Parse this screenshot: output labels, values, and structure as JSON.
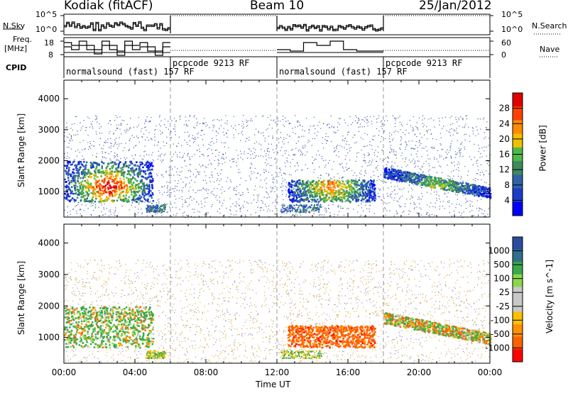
{
  "header": {
    "radar": "Kodiak (fitACF)",
    "beam": "Beam 10",
    "date": "25/Jan/2012"
  },
  "status_labels": {
    "nsky": "N.Sky",
    "nsearch": "N.Search",
    "freq": "Freq.",
    "freq_unit": "[MHz]",
    "nave": "Nave",
    "cpid": "CPID",
    "left_ticks_top": [
      "10^5",
      "10^0"
    ],
    "right_ticks_top": [
      "10^5",
      "10^0"
    ],
    "left_ticks_freq": [
      "18",
      "8"
    ],
    "right_ticks_nave": [
      "60",
      "0"
    ]
  },
  "cpid_segments": [
    {
      "label": "normalsound (fast) 157 RF",
      "start": 0,
      "end": 6
    },
    {
      "label": "pcpcode 9213 RF",
      "start": 6,
      "end": 12
    },
    {
      "label": "normalsound (fast) 157 RF",
      "start": 12,
      "end": 18
    },
    {
      "label": "pcpcode 9213 RF",
      "start": 18,
      "end": 24
    }
  ],
  "chart_data": [
    {
      "type": "heatmap",
      "title": "",
      "xlabel": "Time UT",
      "ylabel": "Slant Range [km]",
      "x_ticks": [
        "00:00",
        "04:00",
        "08:00",
        "12:00",
        "16:00",
        "20:00",
        "00:00"
      ],
      "xlim_hours": [
        0,
        24
      ],
      "y_ticks": [
        1000,
        2000,
        3000,
        4000
      ],
      "ylim_km": [
        180,
        4600
      ],
      "colorbar": {
        "label": "Power [dB]",
        "ticks": [
          "28",
          "24",
          "20",
          "16",
          "12",
          "8",
          "4"
        ],
        "range": [
          0,
          30
        ],
        "colors": [
          "#0000ff",
          "#1a3cc8",
          "#2f63a8",
          "#3d8a5a",
          "#4fb84a",
          "#f0c000",
          "#ff8a00",
          "#ff4000",
          "#e00000"
        ]
      },
      "echo_regions": [
        {
          "t0": 0.0,
          "t1": 5.0,
          "r0": 700,
          "r1": 2000,
          "peak_db": 28
        },
        {
          "t0": 12.6,
          "t1": 17.5,
          "r0": 700,
          "r1": 1400,
          "peak_db": 20
        },
        {
          "t0": 18.0,
          "t1": 24.0,
          "r0": 800,
          "r1": 1900,
          "peak_db": 12
        }
      ]
    },
    {
      "type": "heatmap",
      "title": "",
      "xlabel": "Time UT",
      "ylabel": "Slant Range [km]",
      "x_ticks": [
        "00:00",
        "04:00",
        "08:00",
        "12:00",
        "16:00",
        "20:00",
        "00:00"
      ],
      "xlim_hours": [
        0,
        24
      ],
      "y_ticks": [
        1000,
        2000,
        3000,
        4000
      ],
      "ylim_km": [
        180,
        4600
      ],
      "colorbar": {
        "label": "Velocity [m s^-1]",
        "ticks": [
          "1000",
          "500",
          "100",
          "25",
          "-25",
          "-100",
          "-500",
          "-1000"
        ],
        "range": [
          -1000,
          1000
        ],
        "colors": [
          "#ff0000",
          "#ff6000",
          "#ff9000",
          "#ffc000",
          "#c8c8c8",
          "#c8c8c8",
          "#8ad84a",
          "#3aa84a",
          "#2f6f8a",
          "#2a4aa0"
        ]
      },
      "echo_regions": [
        {
          "t0": 0.0,
          "t1": 5.0,
          "r0": 700,
          "r1": 2000,
          "vel": 100
        },
        {
          "t0": 12.6,
          "t1": 17.5,
          "r0": 700,
          "r1": 1400,
          "vel": -300
        },
        {
          "t0": 18.0,
          "t1": 24.0,
          "r0": 800,
          "r1": 1900,
          "vel": 0
        }
      ]
    }
  ]
}
